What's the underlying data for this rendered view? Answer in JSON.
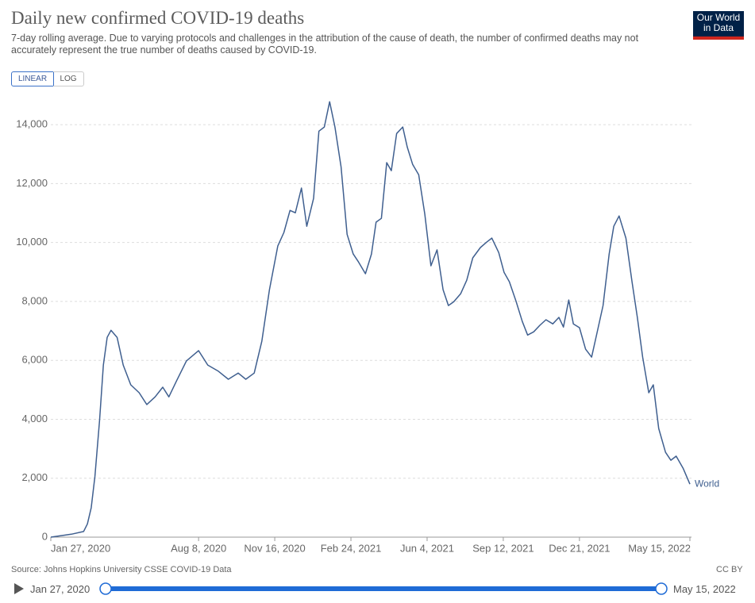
{
  "logo": "Our World in Data",
  "controls": {
    "buttons": [
      "LINEAR",
      "LOG"
    ],
    "active": 0
  },
  "source": "Source: Johns Hopkins University CSSE COVID-19 Data",
  "license": "CC BY",
  "timeline": {
    "start": "Jan 27, 2020",
    "end": "May 15, 2022"
  },
  "chart_data": {
    "type": "line",
    "title": "Daily new confirmed COVID-19 deaths",
    "subtitle": "7-day rolling average. Due to varying protocols and challenges in the attribution of the cause of death, the number of confirmed deaths may not accurately represent the true number of deaths caused by COVID-19.",
    "log_scale": false,
    "grid": true,
    "x": [
      "2020-01-27",
      "2020-02-23",
      "2020-03-10",
      "2020-03-15",
      "2020-03-20",
      "2020-03-25",
      "2020-03-31",
      "2020-04-05",
      "2020-04-10",
      "2020-04-15",
      "2020-04-23",
      "2020-05-01",
      "2020-05-11",
      "2020-05-22",
      "2020-06-01",
      "2020-06-12",
      "2020-06-22",
      "2020-06-30",
      "2020-07-10",
      "2020-07-23",
      "2020-08-08",
      "2020-08-20",
      "2020-09-03",
      "2020-09-16",
      "2020-09-29",
      "2020-10-09",
      "2020-10-20",
      "2020-10-30",
      "2020-11-09",
      "2020-11-20",
      "2020-11-28",
      "2020-12-06",
      "2020-12-13",
      "2020-12-21",
      "2020-12-28",
      "2021-01-06",
      "2021-01-13",
      "2021-01-20",
      "2021-01-27",
      "2021-02-03",
      "2021-02-11",
      "2021-02-19",
      "2021-02-27",
      "2021-03-06",
      "2021-03-15",
      "2021-03-23",
      "2021-03-29",
      "2021-04-05",
      "2021-04-12",
      "2021-04-18",
      "2021-04-25",
      "2021-05-03",
      "2021-05-09",
      "2021-05-16",
      "2021-05-24",
      "2021-06-01",
      "2021-06-09",
      "2021-06-17",
      "2021-06-25",
      "2021-07-02",
      "2021-07-09",
      "2021-07-18",
      "2021-07-26",
      "2021-08-03",
      "2021-08-13",
      "2021-08-21",
      "2021-08-28",
      "2021-09-06",
      "2021-09-13",
      "2021-09-20",
      "2021-09-29",
      "2021-10-07",
      "2021-10-14",
      "2021-10-22",
      "2021-10-30",
      "2021-11-07",
      "2021-11-16",
      "2021-11-24",
      "2021-11-30",
      "2021-12-07",
      "2021-12-13",
      "2021-12-21",
      "2021-12-29",
      "2022-01-06",
      "2022-01-13",
      "2022-01-21",
      "2022-01-29",
      "2022-02-04",
      "2022-02-11",
      "2022-02-20",
      "2022-02-28",
      "2022-03-07",
      "2022-03-14",
      "2022-03-22",
      "2022-03-28",
      "2022-04-04",
      "2022-04-13",
      "2022-04-20",
      "2022-04-27",
      "2022-05-06",
      "2022-05-15"
    ],
    "series": [
      {
        "name": "World",
        "color": "#3f5f8f",
        "values": [
          0,
          100,
          190,
          450,
          1000,
          2070,
          3960,
          5840,
          6780,
          7020,
          6780,
          5840,
          5170,
          4900,
          4500,
          4760,
          5090,
          4760,
          5300,
          5980,
          6330,
          5840,
          5630,
          5360,
          5570,
          5360,
          5570,
          6650,
          8400,
          9880,
          10340,
          11090,
          11010,
          11850,
          10550,
          11500,
          13780,
          13920,
          14780,
          13920,
          12570,
          10280,
          9610,
          9340,
          8940,
          9610,
          10690,
          10820,
          12710,
          12440,
          13700,
          13920,
          13240,
          12650,
          12300,
          10960,
          9210,
          9750,
          8400,
          7860,
          7990,
          8260,
          8720,
          9480,
          9830,
          10010,
          10150,
          9660,
          8990,
          8670,
          7990,
          7320,
          6860,
          6970,
          7190,
          7380,
          7240,
          7460,
          7130,
          8050,
          7240,
          7110,
          6380,
          6110,
          6920,
          7860,
          9610,
          10550,
          10900,
          10150,
          8670,
          7460,
          6110,
          4900,
          5170,
          3690,
          2880,
          2610,
          2750,
          2340,
          1800
        ]
      }
    ],
    "xlim": [
      "2020-01-27",
      "2022-05-15"
    ],
    "xticks": [
      {
        "value": "2020-01-27",
        "label": "Jan 27, 2020"
      },
      {
        "value": "2020-08-08",
        "label": "Aug 8, 2020"
      },
      {
        "value": "2020-11-16",
        "label": "Nov 16, 2020"
      },
      {
        "value": "2021-02-24",
        "label": "Feb 24, 2021"
      },
      {
        "value": "2021-06-04",
        "label": "Jun 4, 2021"
      },
      {
        "value": "2021-09-12",
        "label": "Sep 12, 2021"
      },
      {
        "value": "2021-12-21",
        "label": "Dec 21, 2021"
      },
      {
        "value": "2022-05-15",
        "label": "May 15, 2022"
      }
    ],
    "ylim": [
      0,
      15000
    ],
    "yticks": [
      0,
      {
        "value": 2000,
        "label": "2,000"
      },
      {
        "value": 4000,
        "label": "4,000"
      },
      {
        "value": 6000,
        "label": "6,000"
      },
      {
        "value": 8000,
        "label": "8,000"
      },
      {
        "value": 10000,
        "label": "10,000"
      },
      {
        "value": 12000,
        "label": "12,000"
      },
      {
        "value": 14000,
        "label": "14,000"
      }
    ]
  }
}
